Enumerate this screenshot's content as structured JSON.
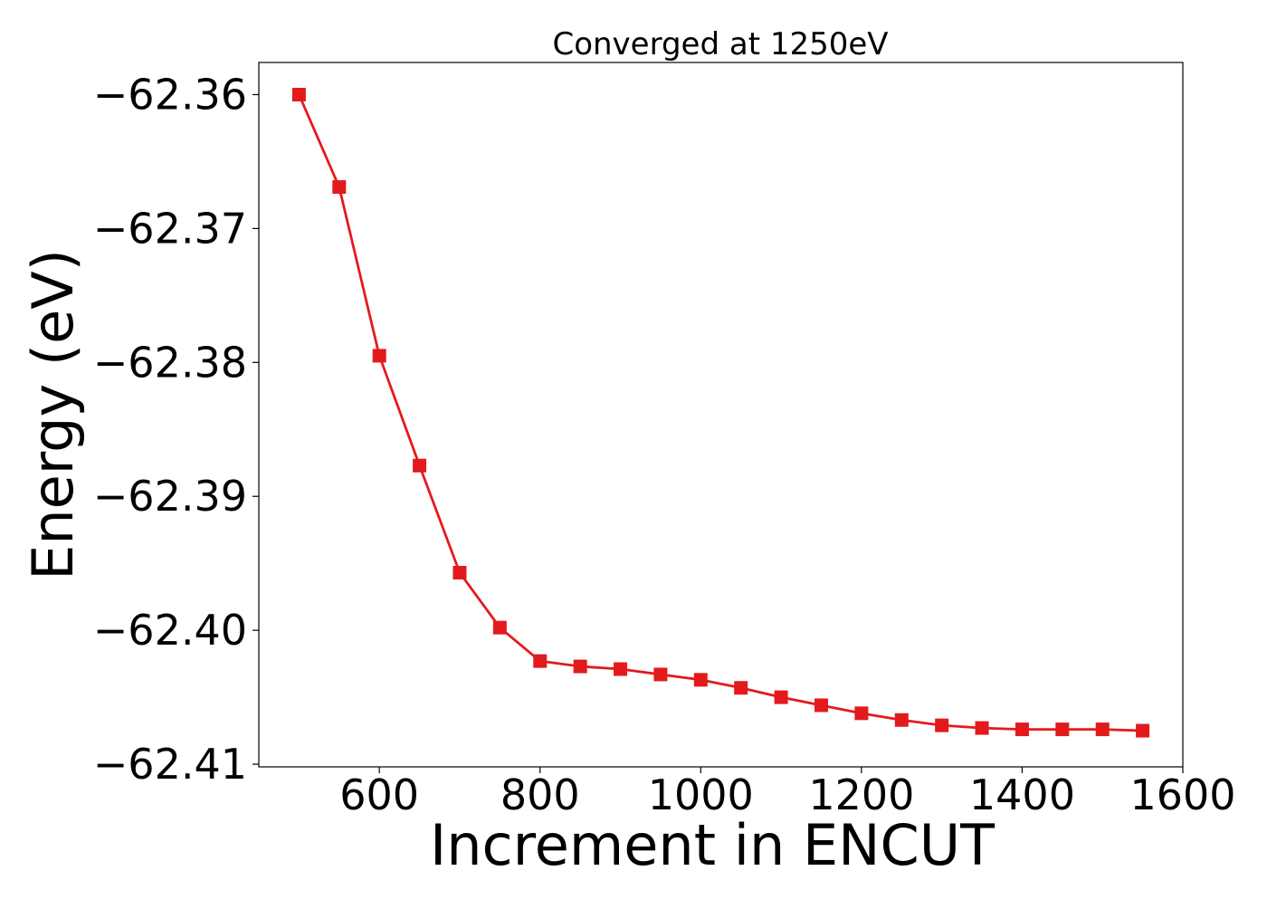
{
  "chart_data": {
    "type": "line",
    "title": "Converged at 1250eV",
    "xlabel": "Increment in ENCUT",
    "ylabel": "Energy (eV)",
    "xlim": [
      450,
      1600
    ],
    "ylim": [
      -62.4102,
      -62.3576
    ],
    "x_ticks": [
      600,
      800,
      1000,
      1200,
      1400,
      1600
    ],
    "y_ticks": [
      -62.36,
      -62.37,
      -62.38,
      -62.39,
      -62.4,
      -62.41
    ],
    "x_tick_labels": [
      "600",
      "800",
      "1000",
      "1200",
      "1400",
      "1600"
    ],
    "y_tick_labels": [
      "−62.36",
      "−62.37",
      "−62.38",
      "−62.39",
      "−62.40",
      "−62.41"
    ],
    "grid": false,
    "series": [
      {
        "color": "#e31a1c",
        "marker": "square",
        "x": [
          500,
          550,
          600,
          650,
          700,
          750,
          800,
          850,
          900,
          950,
          1000,
          1050,
          1100,
          1150,
          1200,
          1250,
          1300,
          1350,
          1400,
          1450,
          1500,
          1550
        ],
        "y": [
          -62.36,
          -62.3669,
          -62.3795,
          -62.3877,
          -62.3957,
          -62.3998,
          -62.4023,
          -62.4027,
          -62.4029,
          -62.4033,
          -62.4037,
          -62.4043,
          -62.405,
          -62.4056,
          -62.4062,
          -62.4067,
          -62.4071,
          -62.4073,
          -62.4074,
          -62.4074,
          -62.4074,
          -62.4075
        ]
      }
    ]
  }
}
